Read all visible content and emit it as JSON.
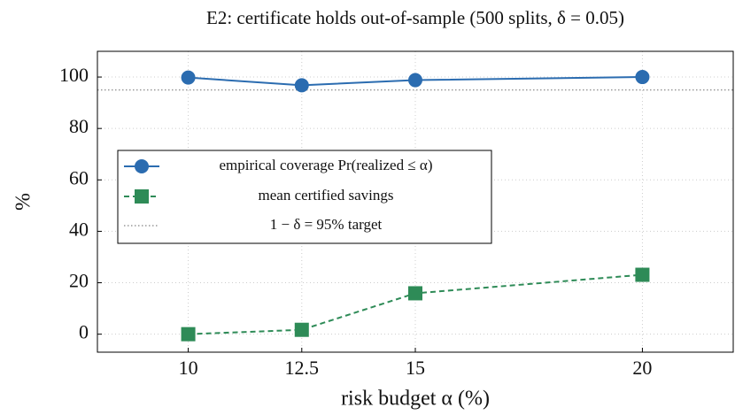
{
  "chart_data": {
    "type": "line",
    "title": "E2: certificate holds out-of-sample (500 splits, δ = 0.05)",
    "xlabel": "risk budget α (%)",
    "ylabel": "%",
    "x": [
      10,
      12.5,
      15,
      20
    ],
    "series": [
      {
        "name": "empirical coverage Pr(realized ≤ α)",
        "color": "#2b6cb0",
        "marker": "circle",
        "linestyle": "solid",
        "values": [
          99.8,
          96.8,
          98.8,
          100
        ]
      },
      {
        "name": "mean certified savings",
        "color": "#2e8b57",
        "marker": "square",
        "linestyle": "dashed",
        "values": [
          0,
          1.7,
          15.9,
          23.1
        ]
      }
    ],
    "reference_line": {
      "name": "1 − δ = 95% target",
      "value": 95,
      "color": "#999999"
    },
    "xlim": [
      8,
      22
    ],
    "ylim": [
      -7,
      110
    ],
    "xticks": [
      10,
      12.5,
      15,
      20
    ],
    "yticks": [
      0,
      20,
      40,
      60,
      80,
      100
    ],
    "grid": true,
    "legend": "center left"
  }
}
